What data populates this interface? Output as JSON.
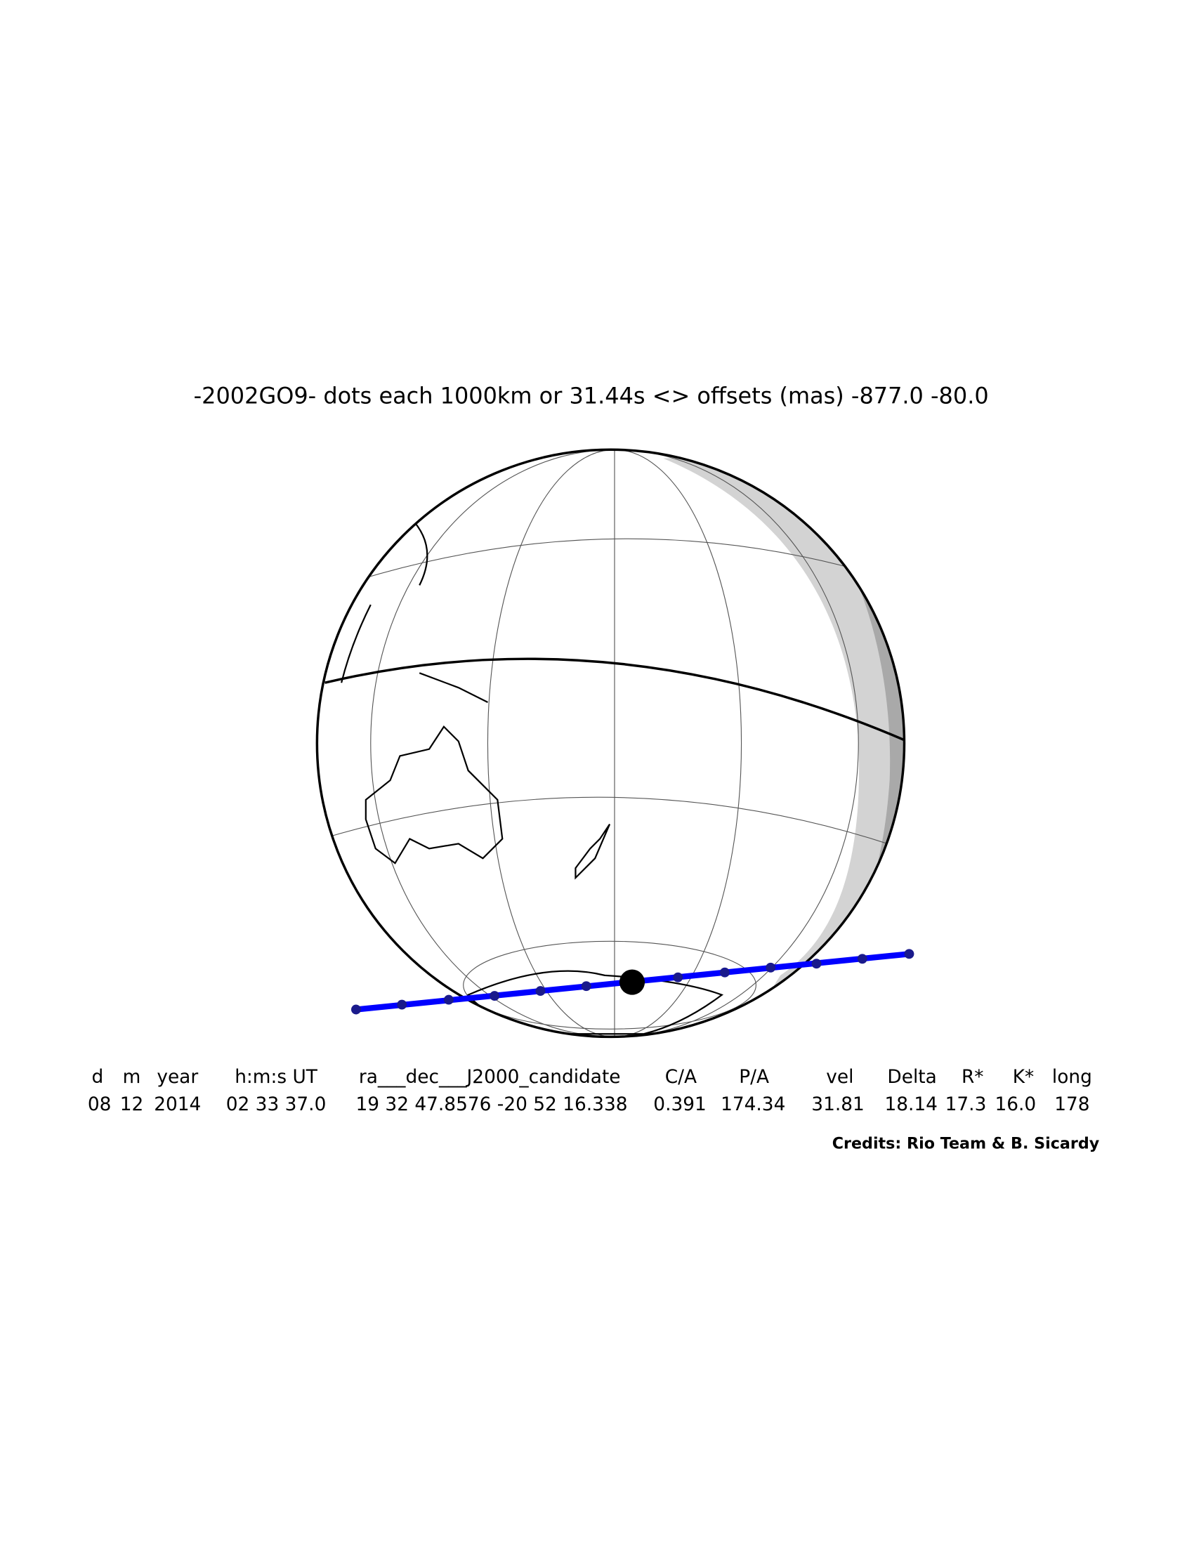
{
  "title": "-2002GO9- dots each 1000km or 31.44s <> offsets (mas) -877.0  -80.0",
  "table": {
    "headers": [
      "d",
      "m",
      "year",
      "h:m:s UT",
      "ra___dec___J2000_candidate",
      "C/A",
      "P/A",
      "vel",
      "Delta",
      "R*",
      "K*",
      "long"
    ],
    "rows": [
      [
        "08",
        "12",
        "2014",
        "02 33 37.0",
        "19 32 47.8576 -20 52 16.338",
        "0.391",
        "174.34",
        "31.81",
        "18.14",
        "17.3",
        "16.0",
        "178"
      ]
    ]
  },
  "credits": "Credits: Rio Team & B. Sicardy"
}
